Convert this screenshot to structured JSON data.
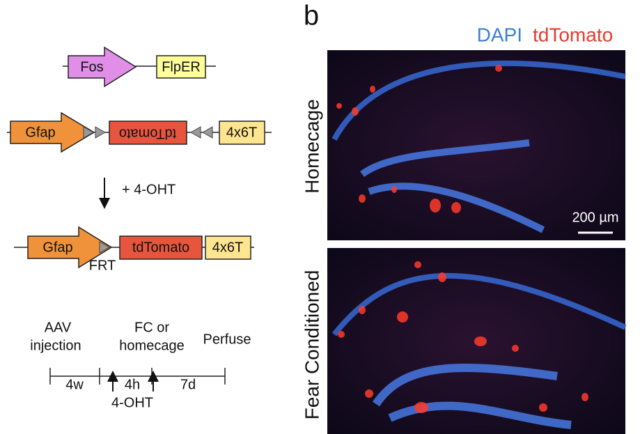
{
  "panel_label": "b",
  "construct_1": {
    "promoter": "Fos",
    "gene": "FlpER"
  },
  "construct_2": {
    "promoter": "Gfap",
    "reporter": "tdTomato",
    "utr": "4x6T"
  },
  "treatment": "+ 4-OHT",
  "construct_3": {
    "promoter": "Gfap",
    "site": "FRT",
    "reporter": "tdTomato",
    "utr": "4x6T"
  },
  "timeline": {
    "events": [
      [
        "AAV",
        "injection"
      ],
      [
        "FC or",
        "homecage"
      ],
      [
        "Perfuse"
      ]
    ],
    "intervals": [
      "4w",
      "4h",
      "7d"
    ],
    "drug": "4-OHT"
  },
  "images": {
    "legend": [
      "DAPI",
      "tdTomato"
    ],
    "rows": [
      "Homecage",
      "Fear Conditioned"
    ],
    "scale_bar": "200 µm"
  }
}
